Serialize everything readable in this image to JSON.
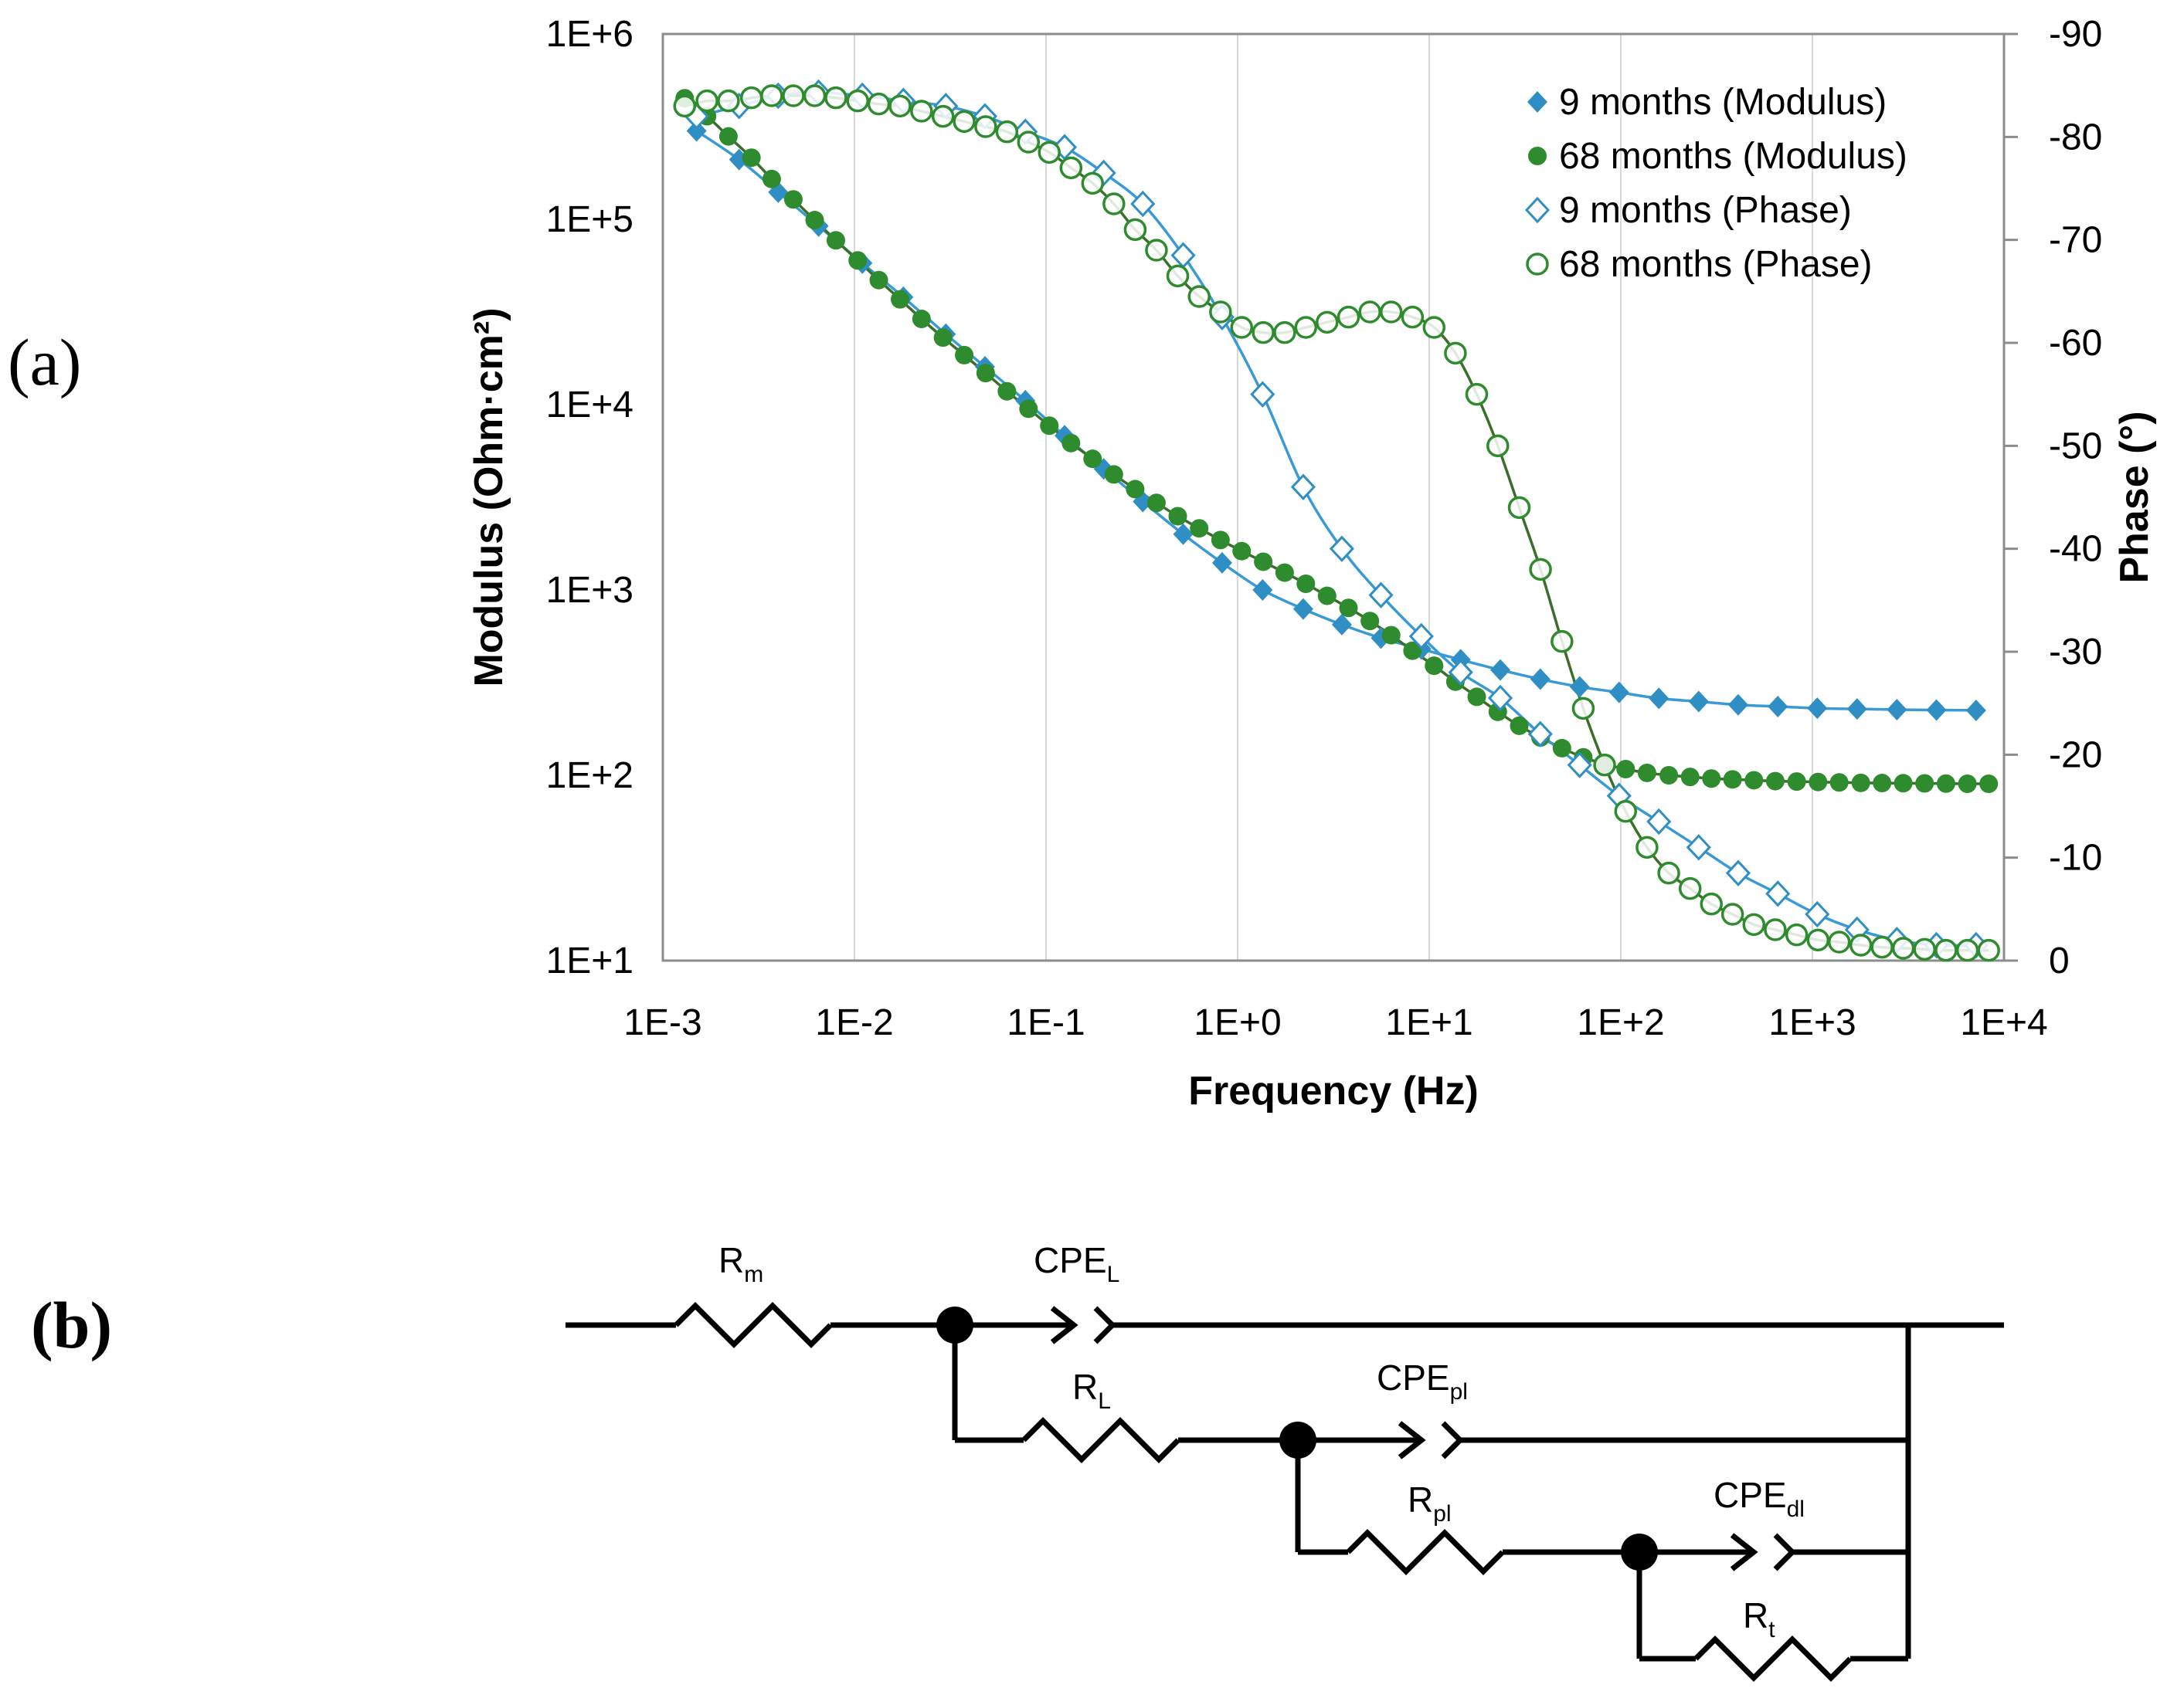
{
  "panels": {
    "a": "(a)",
    "b": "(b)"
  },
  "chart_data": {
    "type": "scatter",
    "title": "",
    "xlabel": "Frequency (Hz)",
    "ylabel": "Modulus (Ohm·cm²)",
    "y2label": "Phase (°)",
    "xscale": "log",
    "xlim": [
      0.001,
      10000
    ],
    "ylim": [
      10,
      1000000
    ],
    "y2lim": [
      0,
      -90
    ],
    "x_ticks": [
      "1E-3",
      "1E-2",
      "1E-1",
      "1E+0",
      "1E+1",
      "1E+2",
      "1E+3",
      "1E+4"
    ],
    "y_ticks": [
      "1E+1",
      "1E+2",
      "1E+3",
      "1E+4",
      "1E+5",
      "1E+6"
    ],
    "y2_ticks": [
      "0",
      "-10",
      "-20",
      "-30",
      "-40",
      "-50",
      "-60",
      "-70",
      "-80",
      "-90"
    ],
    "legend_position": "top-right",
    "series": [
      {
        "name": "9 months (Modulus)",
        "axis": "left",
        "marker": "filled-diamond",
        "color": "#2f8fc4",
        "x": [
          0.0015,
          0.0025,
          0.004,
          0.0065,
          0.011,
          0.018,
          0.03,
          0.048,
          0.078,
          0.125,
          0.2,
          0.32,
          0.52,
          0.83,
          1.35,
          2.2,
          3.5,
          5.6,
          9.1,
          14.6,
          23.5,
          38,
          61,
          98,
          158,
          255,
          410,
          660,
          1060,
          1710,
          2760,
          4440,
          7150
        ],
        "values": [
          300000,
          210000,
          140000,
          92000,
          58000,
          38000,
          24000,
          16000,
          10500,
          6800,
          4500,
          3000,
          2000,
          1400,
          1000,
          790,
          650,
          550,
          480,
          420,
          370,
          330,
          300,
          280,
          260,
          250,
          240,
          235,
          230,
          228,
          226,
          225,
          224
        ]
      },
      {
        "name": "68 months (Modulus)",
        "axis": "left",
        "marker": "filled-circle",
        "color": "#2e8b2e",
        "x": [
          0.0013,
          0.0017,
          0.0022,
          0.0029,
          0.0037,
          0.0048,
          0.0062,
          0.008,
          0.0104,
          0.0134,
          0.0173,
          0.0224,
          0.029,
          0.0374,
          0.0484,
          0.0625,
          0.081,
          0.104,
          0.135,
          0.175,
          0.226,
          0.292,
          0.377,
          0.487,
          0.63,
          0.814,
          1.05,
          1.36,
          1.76,
          2.27,
          2.93,
          3.79,
          4.9,
          6.33,
          8.18,
          10.6,
          13.7,
          17.7,
          22.8,
          29.5,
          38.1,
          49.3,
          63.7,
          82.3,
          106,
          137,
          178,
          230,
          297,
          383,
          495,
          640,
          828,
          1070,
          1380,
          1790,
          2310,
          2980,
          3850,
          4980,
          6440,
          8320
        ],
        "values": [
          450000,
          360000,
          280000,
          215000,
          165000,
          128000,
          99000,
          77000,
          60000,
          47000,
          37000,
          29000,
          23000,
          18500,
          14800,
          11800,
          9500,
          7700,
          6200,
          5100,
          4200,
          3500,
          2950,
          2500,
          2150,
          1860,
          1620,
          1420,
          1240,
          1080,
          930,
          800,
          680,
          570,
          470,
          390,
          320,
          265,
          220,
          185,
          160,
          140,
          125,
          115,
          108,
          103,
          100,
          98,
          96,
          95,
          94,
          93,
          92.5,
          92,
          91.5,
          91,
          90.8,
          90.6,
          90.4,
          90.2,
          90,
          90
        ]
      },
      {
        "name": "9 months (Phase)",
        "axis": "right",
        "marker": "open-diamond",
        "color": "#2f8fc4",
        "x": [
          0.0015,
          0.0025,
          0.004,
          0.0065,
          0.011,
          0.018,
          0.03,
          0.048,
          0.078,
          0.125,
          0.2,
          0.32,
          0.52,
          0.83,
          1.35,
          2.2,
          3.5,
          5.6,
          9.1,
          14.6,
          23.5,
          38,
          61,
          98,
          158,
          255,
          410,
          660,
          1060,
          1710,
          2760,
          4440,
          7150
        ],
        "values": [
          -82,
          -83,
          -84,
          -84.3,
          -84,
          -83.5,
          -83,
          -82,
          -80.5,
          -79,
          -76.5,
          -73.5,
          -68.5,
          -62.5,
          -55,
          -46,
          -40,
          -35.5,
          -31.5,
          -28,
          -25.5,
          -22,
          -19,
          -16,
          -13.5,
          -11,
          -8.5,
          -6.5,
          -4.5,
          -3,
          -2,
          -1.5,
          -1.5
        ]
      },
      {
        "name": "68 months (Phase)",
        "axis": "right",
        "marker": "open-circle",
        "color": "#2e8b2e",
        "x": [
          0.0013,
          0.0017,
          0.0022,
          0.0029,
          0.0037,
          0.0048,
          0.0062,
          0.008,
          0.0104,
          0.0134,
          0.0173,
          0.0224,
          0.029,
          0.0374,
          0.0484,
          0.0625,
          0.081,
          0.104,
          0.135,
          0.175,
          0.226,
          0.292,
          0.377,
          0.487,
          0.63,
          0.814,
          1.05,
          1.36,
          1.76,
          2.27,
          2.93,
          3.79,
          4.9,
          6.33,
          8.18,
          10.6,
          13.7,
          17.7,
          22.8,
          29.5,
          38.1,
          49.3,
          63.7,
          82.3,
          106,
          137,
          178,
          230,
          297,
          383,
          495,
          640,
          828,
          1070,
          1380,
          1790,
          2310,
          2980,
          3850,
          4980,
          6440,
          8320
        ],
        "values": [
          -83,
          -83.5,
          -83.5,
          -83.8,
          -84,
          -84,
          -84,
          -83.8,
          -83.5,
          -83.2,
          -83,
          -82.5,
          -82,
          -81.5,
          -81,
          -80.5,
          -79.5,
          -78.5,
          -77,
          -75.5,
          -73.5,
          -71,
          -69,
          -66.5,
          -64.5,
          -63,
          -61.5,
          -61,
          -61,
          -61.5,
          -62,
          -62.5,
          -63,
          -63,
          -62.5,
          -61.5,
          -59,
          -55,
          -50,
          -44,
          -38,
          -31,
          -24.5,
          -19,
          -14.5,
          -11,
          -8.5,
          -7,
          -5.5,
          -4.5,
          -3.5,
          -3,
          -2.5,
          -2,
          -1.8,
          -1.5,
          -1.3,
          -1.2,
          -1.1,
          -1,
          -1,
          -1
        ]
      }
    ]
  },
  "circuit": {
    "labels": {
      "rm": {
        "main": "R",
        "sub": "m"
      },
      "cpel": {
        "main": "CPE",
        "sub": "L"
      },
      "rl": {
        "main": "R",
        "sub": "L"
      },
      "cpepl": {
        "main": "CPE",
        "sub": "pl"
      },
      "rpl": {
        "main": "R",
        "sub": "pl"
      },
      "cpedl": {
        "main": "CPE",
        "sub": "dl"
      },
      "rt": {
        "main": "R",
        "sub": "t"
      }
    }
  }
}
